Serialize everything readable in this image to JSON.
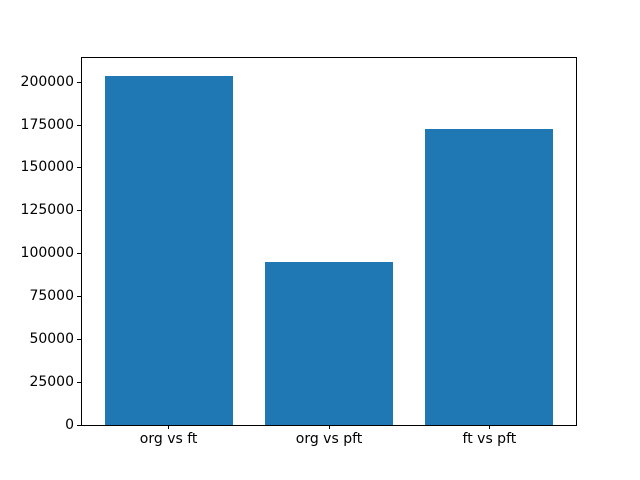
{
  "chart_data": {
    "type": "bar",
    "categories": [
      "org vs ft",
      "org vs pft",
      "ft vs pft"
    ],
    "values": [
      204000,
      95000,
      173000
    ],
    "title": "",
    "xlabel": "",
    "ylabel": "",
    "ylim": [
      0,
      214200
    ],
    "yticks": [
      0,
      25000,
      50000,
      75000,
      100000,
      125000,
      150000,
      175000,
      200000
    ],
    "bar_color": "#1f77b4",
    "axis_color": "#000000",
    "background_color": "#ffffff",
    "bar_width_fraction": 0.8,
    "grid": false,
    "legend": "none"
  }
}
